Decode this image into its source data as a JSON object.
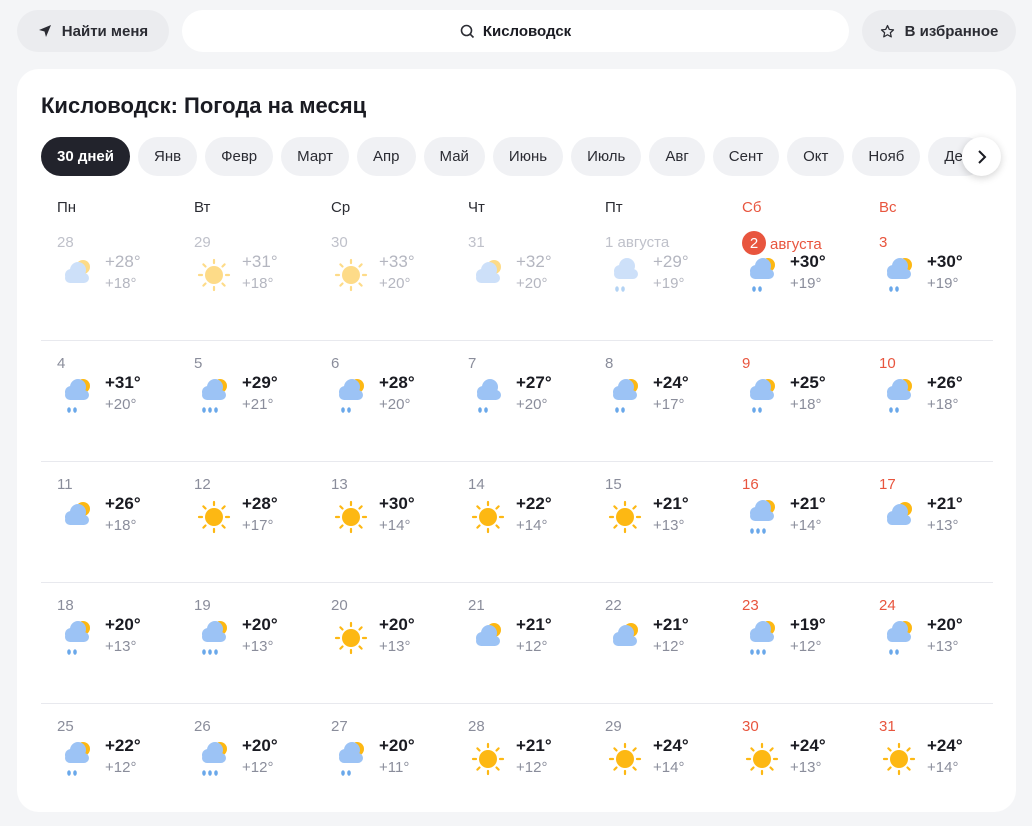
{
  "header": {
    "find_me": "Найти меня",
    "search_value": "Кисловодск",
    "favorite": "В избранное"
  },
  "title": "Кисловодск: Погода на месяц",
  "tabs": [
    "30 дней",
    "Янв",
    "Февр",
    "Март",
    "Апр",
    "Май",
    "Июнь",
    "Июль",
    "Авг",
    "Сент",
    "Окт",
    "Нояб",
    "Дек"
  ],
  "active_tab": "30 дней",
  "weekdays": [
    "Пн",
    "Вт",
    "Ср",
    "Чт",
    "Пт",
    "Сб",
    "Вс"
  ],
  "colors": {
    "weekend": "#e8553e",
    "active_tab": "#22232c"
  },
  "days": [
    {
      "date": "28",
      "hi": "+28°",
      "lo": "+18°",
      "icon": "partly-cloudy",
      "past": true
    },
    {
      "date": "29",
      "hi": "+31°",
      "lo": "+18°",
      "icon": "sun",
      "past": true
    },
    {
      "date": "30",
      "hi": "+33°",
      "lo": "+20°",
      "icon": "sun",
      "past": true
    },
    {
      "date": "31",
      "hi": "+32°",
      "lo": "+20°",
      "icon": "partly-cloudy",
      "past": true
    },
    {
      "date": "1 августа",
      "hi": "+29°",
      "lo": "+19°",
      "icon": "cloud-rain",
      "past": true
    },
    {
      "date": "2",
      "month": "августа",
      "today": true,
      "hi": "+30°",
      "lo": "+19°",
      "icon": "sun-cloud-rain"
    },
    {
      "date": "3",
      "hi": "+30°",
      "lo": "+19°",
      "icon": "sun-cloud-rain"
    },
    {
      "date": "4",
      "hi": "+31°",
      "lo": "+20°",
      "icon": "sun-cloud-rain"
    },
    {
      "date": "5",
      "hi": "+29°",
      "lo": "+21°",
      "icon": "sun-cloud-heavy-rain"
    },
    {
      "date": "6",
      "hi": "+28°",
      "lo": "+20°",
      "icon": "sun-cloud-rain"
    },
    {
      "date": "7",
      "hi": "+27°",
      "lo": "+20°",
      "icon": "cloud-rain"
    },
    {
      "date": "8",
      "hi": "+24°",
      "lo": "+17°",
      "icon": "sun-cloud-rain"
    },
    {
      "date": "9",
      "hi": "+25°",
      "lo": "+18°",
      "icon": "sun-cloud-rain"
    },
    {
      "date": "10",
      "hi": "+26°",
      "lo": "+18°",
      "icon": "sun-cloud-rain"
    },
    {
      "date": "11",
      "hi": "+26°",
      "lo": "+18°",
      "icon": "partly-cloudy"
    },
    {
      "date": "12",
      "hi": "+28°",
      "lo": "+17°",
      "icon": "sun"
    },
    {
      "date": "13",
      "hi": "+30°",
      "lo": "+14°",
      "icon": "sun"
    },
    {
      "date": "14",
      "hi": "+22°",
      "lo": "+14°",
      "icon": "sun"
    },
    {
      "date": "15",
      "hi": "+21°",
      "lo": "+13°",
      "icon": "sun"
    },
    {
      "date": "16",
      "hi": "+21°",
      "lo": "+14°",
      "icon": "sun-cloud-heavy-rain"
    },
    {
      "date": "17",
      "hi": "+21°",
      "lo": "+13°",
      "icon": "partly-cloudy"
    },
    {
      "date": "18",
      "hi": "+20°",
      "lo": "+13°",
      "icon": "sun-cloud-rain"
    },
    {
      "date": "19",
      "hi": "+20°",
      "lo": "+13°",
      "icon": "sun-cloud-heavy-rain"
    },
    {
      "date": "20",
      "hi": "+20°",
      "lo": "+13°",
      "icon": "sun"
    },
    {
      "date": "21",
      "hi": "+21°",
      "lo": "+12°",
      "icon": "partly-cloudy"
    },
    {
      "date": "22",
      "hi": "+21°",
      "lo": "+12°",
      "icon": "partly-cloudy"
    },
    {
      "date": "23",
      "hi": "+19°",
      "lo": "+12°",
      "icon": "sun-cloud-heavy-rain"
    },
    {
      "date": "24",
      "hi": "+20°",
      "lo": "+13°",
      "icon": "sun-cloud-rain"
    },
    {
      "date": "25",
      "hi": "+22°",
      "lo": "+12°",
      "icon": "sun-cloud-rain"
    },
    {
      "date": "26",
      "hi": "+20°",
      "lo": "+12°",
      "icon": "sun-cloud-heavy-rain"
    },
    {
      "date": "27",
      "hi": "+20°",
      "lo": "+11°",
      "icon": "sun-cloud-rain"
    },
    {
      "date": "28",
      "hi": "+21°",
      "lo": "+12°",
      "icon": "sun"
    },
    {
      "date": "29",
      "hi": "+24°",
      "lo": "+14°",
      "icon": "sun"
    },
    {
      "date": "30",
      "hi": "+24°",
      "lo": "+13°",
      "icon": "sun"
    },
    {
      "date": "31",
      "hi": "+24°",
      "lo": "+14°",
      "icon": "sun"
    }
  ]
}
